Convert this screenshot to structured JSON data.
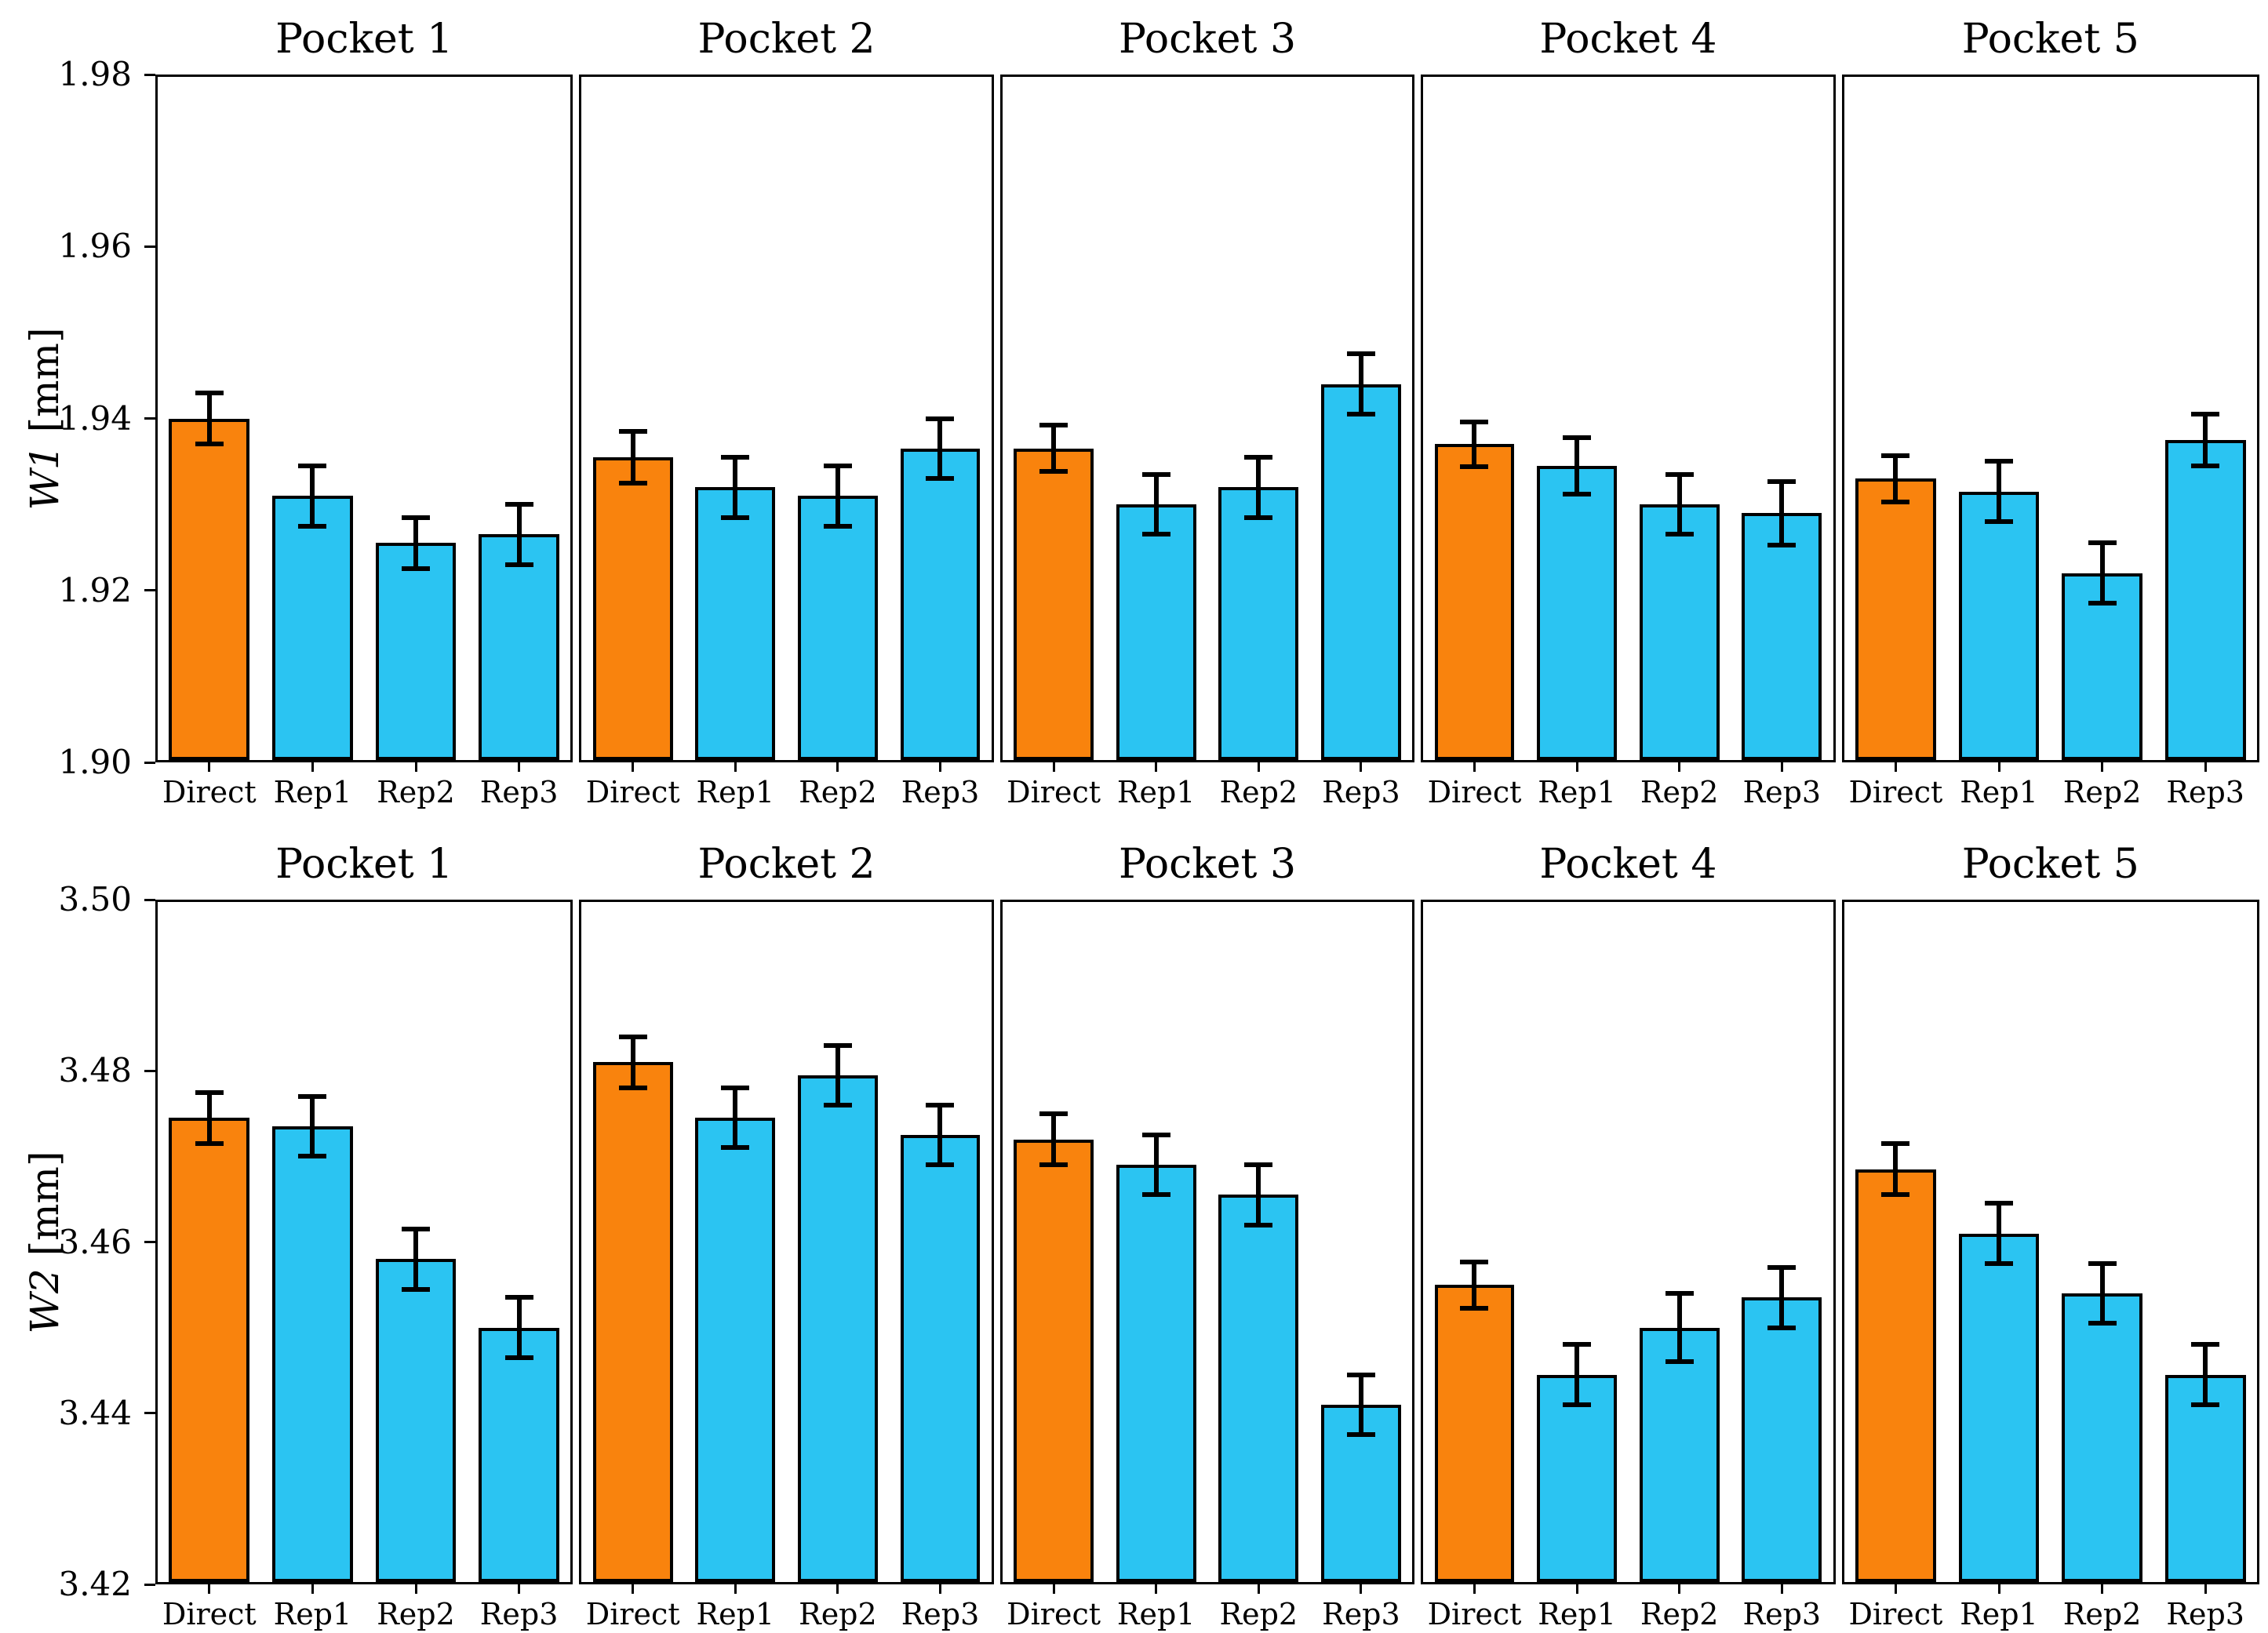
{
  "figure": {
    "background": "#ffffff"
  },
  "colors": {
    "direct_bar": "#F9830D",
    "rep_bar": "#2BC4F2",
    "bar_edge": "#000000",
    "error_bar": "#000000",
    "axis": "#000000",
    "text": "#000000"
  },
  "chart_data": [
    {
      "type": "bar",
      "ylabel_italic": "W1",
      "ylabel_unit": " [mm]",
      "ylim": [
        1.9,
        1.98
      ],
      "yticks": [
        1.9,
        1.92,
        1.94,
        1.96,
        1.98
      ],
      "ytick_labels": [
        "1.90",
        "1.92",
        "1.94",
        "1.96",
        "1.98"
      ],
      "categories": [
        "Direct",
        "Rep1",
        "Rep2",
        "Rep3"
      ],
      "grid": false,
      "legend": "none",
      "panels": [
        {
          "title": "Pocket 1",
          "values": [
            1.94,
            1.931,
            1.9255,
            1.9265
          ],
          "errors": [
            0.003,
            0.0035,
            0.003,
            0.0035
          ]
        },
        {
          "title": "Pocket 2",
          "values": [
            1.9355,
            1.932,
            1.931,
            1.9365
          ],
          "errors": [
            0.003,
            0.0035,
            0.0035,
            0.0035
          ]
        },
        {
          "title": "Pocket 3",
          "values": [
            1.9365,
            1.93,
            1.932,
            1.944
          ],
          "errors": [
            0.0027,
            0.0035,
            0.0035,
            0.0035
          ]
        },
        {
          "title": "Pocket 4",
          "values": [
            1.937,
            1.9345,
            1.93,
            1.929
          ],
          "errors": [
            0.0026,
            0.0033,
            0.0035,
            0.0037
          ]
        },
        {
          "title": "Pocket 5",
          "values": [
            1.933,
            1.9315,
            1.922,
            1.9375
          ],
          "errors": [
            0.0027,
            0.0035,
            0.0035,
            0.003
          ]
        }
      ]
    },
    {
      "type": "bar",
      "ylabel_italic": "W2",
      "ylabel_unit": " [mm]",
      "ylim": [
        3.42,
        3.5
      ],
      "yticks": [
        3.42,
        3.44,
        3.46,
        3.48,
        3.5
      ],
      "ytick_labels": [
        "3.42",
        "3.44",
        "3.46",
        "3.48",
        "3.50"
      ],
      "categories": [
        "Direct",
        "Rep1",
        "Rep2",
        "Rep3"
      ],
      "grid": false,
      "legend": "none",
      "panels": [
        {
          "title": "Pocket 1",
          "values": [
            3.4745,
            3.4735,
            3.458,
            3.45
          ],
          "errors": [
            0.003,
            0.0035,
            0.0035,
            0.0035
          ]
        },
        {
          "title": "Pocket 2",
          "values": [
            3.481,
            3.4745,
            3.4795,
            3.4725
          ],
          "errors": [
            0.003,
            0.0035,
            0.0035,
            0.0035
          ]
        },
        {
          "title": "Pocket 3",
          "values": [
            3.472,
            3.469,
            3.4655,
            3.441
          ],
          "errors": [
            0.003,
            0.0035,
            0.0035,
            0.0035
          ]
        },
        {
          "title": "Pocket 4",
          "values": [
            3.455,
            3.4445,
            3.45,
            3.4535
          ],
          "errors": [
            0.0027,
            0.0035,
            0.004,
            0.0035
          ]
        },
        {
          "title": "Pocket 5",
          "values": [
            3.4685,
            3.461,
            3.454,
            3.4445
          ],
          "errors": [
            0.003,
            0.0035,
            0.0035,
            0.0035
          ]
        }
      ]
    }
  ]
}
